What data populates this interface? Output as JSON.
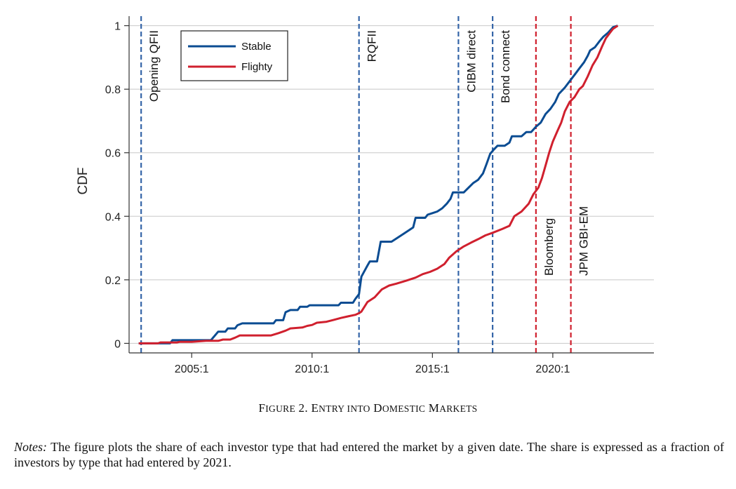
{
  "figure": {
    "caption_prefix": "F",
    "caption_small_1": "IGURE",
    "caption_number": " 2. E",
    "caption_small_2": "NTRY INTO",
    "caption_mid": " D",
    "caption_small_3": "OMESTIC",
    "caption_mid2": " M",
    "caption_small_4": "ARKETS",
    "notes_label": "Notes:",
    "notes_text": " The figure plots the share of each investor type that had entered the market by a given date. The share is expressed as a fraction of investors by type that had entered by 2021."
  },
  "chart_data": {
    "type": "line",
    "ylabel": "CDF",
    "xlabel": "",
    "xlim": [
      2002.4,
      2024.2
    ],
    "ylim": [
      -0.03,
      1.03
    ],
    "x_ticks": [
      {
        "value": 2005,
        "label": "2005:1"
      },
      {
        "value": 2010,
        "label": "2010:1"
      },
      {
        "value": 2015,
        "label": "2015:1"
      },
      {
        "value": 2020,
        "label": "2020:1"
      }
    ],
    "y_ticks": [
      {
        "value": 0,
        "label": "0"
      },
      {
        "value": 0.2,
        "label": "0.2"
      },
      {
        "value": 0.4,
        "label": "0.4"
      },
      {
        "value": 0.6,
        "label": "0.6"
      },
      {
        "value": 0.8,
        "label": "0.8"
      },
      {
        "value": 1,
        "label": "1"
      }
    ],
    "grid": "horizontal",
    "legend_position": "top-left",
    "series": [
      {
        "name": "Stable",
        "color": "#0b4c92",
        "points": [
          [
            2002.8,
            0
          ],
          [
            2004.1,
            0
          ],
          [
            2004.2,
            0.01
          ],
          [
            2005.0,
            0.01
          ],
          [
            2005.8,
            0.01
          ],
          [
            2006.1,
            0.037
          ],
          [
            2006.4,
            0.037
          ],
          [
            2006.5,
            0.047
          ],
          [
            2006.8,
            0.047
          ],
          [
            2006.9,
            0.057
          ],
          [
            2007.1,
            0.063
          ],
          [
            2008.4,
            0.063
          ],
          [
            2008.5,
            0.073
          ],
          [
            2008.8,
            0.073
          ],
          [
            2008.9,
            0.098
          ],
          [
            2009.1,
            0.105
          ],
          [
            2009.4,
            0.105
          ],
          [
            2009.5,
            0.115
          ],
          [
            2009.8,
            0.115
          ],
          [
            2009.9,
            0.12
          ],
          [
            2011.1,
            0.12
          ],
          [
            2011.2,
            0.128
          ],
          [
            2011.7,
            0.128
          ],
          [
            2011.8,
            0.14
          ],
          [
            2011.95,
            0.155
          ],
          [
            2012.05,
            0.21
          ],
          [
            2012.3,
            0.245
          ],
          [
            2012.4,
            0.258
          ],
          [
            2012.7,
            0.258
          ],
          [
            2012.85,
            0.32
          ],
          [
            2013.3,
            0.32
          ],
          [
            2013.5,
            0.33
          ],
          [
            2013.8,
            0.345
          ],
          [
            2014.0,
            0.355
          ],
          [
            2014.2,
            0.365
          ],
          [
            2014.3,
            0.395
          ],
          [
            2014.7,
            0.395
          ],
          [
            2014.8,
            0.405
          ],
          [
            2015.0,
            0.41
          ],
          [
            2015.2,
            0.415
          ],
          [
            2015.4,
            0.425
          ],
          [
            2015.6,
            0.44
          ],
          [
            2015.75,
            0.455
          ],
          [
            2015.85,
            0.475
          ],
          [
            2016.3,
            0.475
          ],
          [
            2016.5,
            0.49
          ],
          [
            2016.7,
            0.505
          ],
          [
            2016.9,
            0.515
          ],
          [
            2017.1,
            0.535
          ],
          [
            2017.25,
            0.565
          ],
          [
            2017.4,
            0.597
          ],
          [
            2017.55,
            0.61
          ],
          [
            2017.7,
            0.622
          ],
          [
            2018.0,
            0.622
          ],
          [
            2018.2,
            0.632
          ],
          [
            2018.3,
            0.652
          ],
          [
            2018.7,
            0.652
          ],
          [
            2018.9,
            0.665
          ],
          [
            2019.1,
            0.665
          ],
          [
            2019.3,
            0.682
          ],
          [
            2019.5,
            0.695
          ],
          [
            2019.7,
            0.722
          ],
          [
            2019.9,
            0.738
          ],
          [
            2020.1,
            0.76
          ],
          [
            2020.25,
            0.785
          ],
          [
            2020.5,
            0.805
          ],
          [
            2020.7,
            0.825
          ],
          [
            2020.9,
            0.845
          ],
          [
            2021.1,
            0.865
          ],
          [
            2021.3,
            0.885
          ],
          [
            2021.45,
            0.905
          ],
          [
            2021.55,
            0.922
          ],
          [
            2021.75,
            0.932
          ],
          [
            2021.95,
            0.952
          ],
          [
            2022.1,
            0.965
          ],
          [
            2022.3,
            0.978
          ],
          [
            2022.5,
            0.995
          ],
          [
            2022.7,
            1.0
          ]
        ]
      },
      {
        "name": "Flighty",
        "color": "#d0202e",
        "points": [
          [
            2002.8,
            0
          ],
          [
            2003.6,
            0
          ],
          [
            2003.7,
            0.003
          ],
          [
            2004.4,
            0.003
          ],
          [
            2004.5,
            0.005
          ],
          [
            2005.0,
            0.005
          ],
          [
            2005.6,
            0.008
          ],
          [
            2006.1,
            0.008
          ],
          [
            2006.3,
            0.012
          ],
          [
            2006.6,
            0.012
          ],
          [
            2006.8,
            0.018
          ],
          [
            2007.0,
            0.025
          ],
          [
            2008.3,
            0.025
          ],
          [
            2008.6,
            0.032
          ],
          [
            2008.9,
            0.04
          ],
          [
            2009.1,
            0.047
          ],
          [
            2009.6,
            0.05
          ],
          [
            2009.8,
            0.055
          ],
          [
            2010.0,
            0.058
          ],
          [
            2010.2,
            0.065
          ],
          [
            2010.6,
            0.068
          ],
          [
            2010.9,
            0.074
          ],
          [
            2011.2,
            0.08
          ],
          [
            2011.5,
            0.085
          ],
          [
            2011.8,
            0.09
          ],
          [
            2011.95,
            0.095
          ],
          [
            2012.05,
            0.1
          ],
          [
            2012.3,
            0.13
          ],
          [
            2012.6,
            0.145
          ],
          [
            2012.9,
            0.17
          ],
          [
            2013.2,
            0.182
          ],
          [
            2013.5,
            0.188
          ],
          [
            2013.9,
            0.197
          ],
          [
            2014.3,
            0.207
          ],
          [
            2014.6,
            0.218
          ],
          [
            2014.9,
            0.225
          ],
          [
            2015.2,
            0.235
          ],
          [
            2015.5,
            0.25
          ],
          [
            2015.7,
            0.27
          ],
          [
            2016.0,
            0.29
          ],
          [
            2016.3,
            0.305
          ],
          [
            2016.6,
            0.317
          ],
          [
            2016.9,
            0.328
          ],
          [
            2017.2,
            0.34
          ],
          [
            2017.5,
            0.348
          ],
          [
            2017.9,
            0.36
          ],
          [
            2018.2,
            0.37
          ],
          [
            2018.4,
            0.4
          ],
          [
            2018.7,
            0.415
          ],
          [
            2019.0,
            0.44
          ],
          [
            2019.2,
            0.47
          ],
          [
            2019.4,
            0.49
          ],
          [
            2019.55,
            0.52
          ],
          [
            2019.7,
            0.56
          ],
          [
            2019.85,
            0.6
          ],
          [
            2020.0,
            0.635
          ],
          [
            2020.2,
            0.67
          ],
          [
            2020.35,
            0.695
          ],
          [
            2020.5,
            0.73
          ],
          [
            2020.7,
            0.76
          ],
          [
            2020.9,
            0.775
          ],
          [
            2021.1,
            0.8
          ],
          [
            2021.25,
            0.81
          ],
          [
            2021.45,
            0.84
          ],
          [
            2021.65,
            0.875
          ],
          [
            2021.85,
            0.9
          ],
          [
            2022.05,
            0.935
          ],
          [
            2022.2,
            0.96
          ],
          [
            2022.35,
            0.975
          ],
          [
            2022.5,
            0.99
          ],
          [
            2022.7,
            1.0
          ]
        ]
      }
    ],
    "events": [
      {
        "x": 2002.9,
        "label": "Opening QFII",
        "color": "#3565a8",
        "label_side": "top"
      },
      {
        "x": 2011.95,
        "label": "RQFII",
        "color": "#3565a8",
        "label_side": "top"
      },
      {
        "x": 2016.08,
        "label": "CIBM direct",
        "color": "#3565a8",
        "label_side": "top"
      },
      {
        "x": 2017.5,
        "label": "Bond connect",
        "color": "#3565a8",
        "label_side": "top"
      },
      {
        "x": 2019.3,
        "label": "Bloomberg",
        "color": "#d0202e",
        "label_side": "bottom"
      },
      {
        "x": 2020.75,
        "label": "JPM GBI-EM",
        "color": "#d0202e",
        "label_side": "bottom"
      }
    ]
  }
}
